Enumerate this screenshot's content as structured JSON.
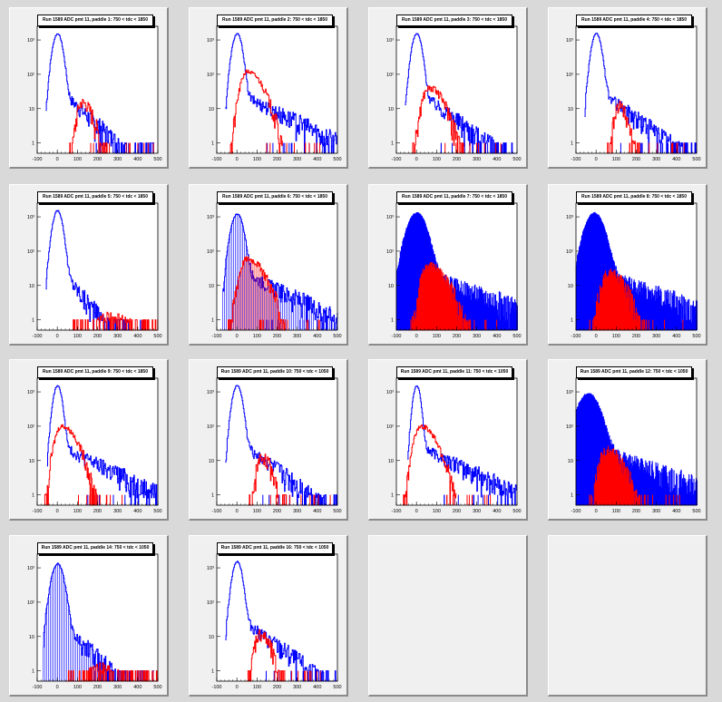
{
  "colors": {
    "blue": "#0000ff",
    "red": "#ff0000",
    "frame": "#000000",
    "pad_bg": "#f0f0f0",
    "canvas_bg": "#d9d9d9"
  },
  "chart_data": [
    {
      "type": "area",
      "title": "Run 1589 ADC pmt 11, paddle 1: 750 < tdc < 1850",
      "x_ticks": [
        "-100",
        "0",
        "100",
        "200",
        "300",
        "400",
        "500"
      ],
      "y_ticks": [
        "1",
        "10",
        "10²",
        "10³"
      ],
      "xlim": [
        -100,
        500
      ],
      "y_scale": "log",
      "series": [
        {
          "color": "blue",
          "peak_x": 0,
          "peak_y": 1500,
          "width": 18,
          "tail": [
            40,
            80
          ],
          "fill": "none"
        },
        {
          "color": "red",
          "peak_x": 120,
          "peak_y": 15,
          "width": 40,
          "fill": "none"
        }
      ]
    },
    {
      "type": "area",
      "title": "Run 1589 ADC pmt 11, paddle 2: 750 < tdc < 1850",
      "x_ticks": [
        "-100",
        "0",
        "100",
        "200",
        "300",
        "400",
        "500"
      ],
      "y_ticks": [
        "1",
        "10",
        "10²",
        "10³"
      ],
      "xlim": [
        -100,
        500
      ],
      "y_scale": "log",
      "series": [
        {
          "color": "blue",
          "peak_x": 0,
          "peak_y": 1500,
          "width": 18,
          "tail": [
            30,
            150
          ],
          "fill": "none"
        },
        {
          "color": "red",
          "peak_x": 50,
          "peak_y": 120,
          "width": 55,
          "fill": "none"
        }
      ]
    },
    {
      "type": "area",
      "title": "Run 1589 ADC pmt 11, paddle 3: 750 < tdc < 1850",
      "x_ticks": [
        "-100",
        "0",
        "100",
        "200",
        "300",
        "400",
        "500"
      ],
      "y_ticks": [
        "1",
        "10",
        "10²",
        "10³"
      ],
      "xlim": [
        -100,
        500
      ],
      "y_scale": "log",
      "series": [
        {
          "color": "blue",
          "peak_x": 0,
          "peak_y": 1500,
          "width": 18,
          "tail": [
            35,
            100
          ],
          "fill": "none"
        },
        {
          "color": "red",
          "peak_x": 60,
          "peak_y": 40,
          "width": 55,
          "fill": "none"
        }
      ]
    },
    {
      "type": "area",
      "title": "Run 1589 ADC pmt 11, paddle 4: 750 < tdc < 1850",
      "x_ticks": [
        "-100",
        "0",
        "100",
        "200",
        "300",
        "400",
        "500"
      ],
      "y_ticks": [
        "1",
        "10",
        "10²",
        "10³"
      ],
      "xlim": [
        -100,
        500
      ],
      "y_scale": "log",
      "series": [
        {
          "color": "blue",
          "peak_x": 0,
          "peak_y": 1500,
          "width": 18,
          "tail": [
            40,
            100
          ],
          "fill": "none"
        },
        {
          "color": "red",
          "peak_x": 110,
          "peak_y": 12,
          "width": 35,
          "fill": "none"
        }
      ]
    },
    {
      "type": "area",
      "title": "Run 1589 ADC pmt 11, paddle 5: 750 < tdc < 1850",
      "x_ticks": [
        "-100",
        "0",
        "100",
        "200",
        "300",
        "400",
        "500"
      ],
      "y_ticks": [
        "1",
        "10",
        "10²",
        "10³"
      ],
      "xlim": [
        -100,
        500
      ],
      "y_scale": "log",
      "series": [
        {
          "color": "blue",
          "peak_x": 0,
          "peak_y": 1500,
          "width": 18,
          "tail": [
            40,
            60
          ],
          "fill": "none"
        },
        {
          "color": "red",
          "peak_x": 250,
          "peak_y": 1,
          "width": 120,
          "fill": "none"
        }
      ]
    },
    {
      "type": "area",
      "title": "Run 1589 ADC pmt 11, paddle 6: 750 < tdc < 1850",
      "x_ticks": [
        "-100",
        "0",
        "100",
        "200",
        "300",
        "400",
        "500"
      ],
      "y_ticks": [
        "1",
        "10",
        "10²",
        "10³"
      ],
      "xlim": [
        -100,
        500
      ],
      "y_scale": "log",
      "series": [
        {
          "color": "blue",
          "peak_x": 0,
          "peak_y": 1200,
          "width": 22,
          "tail": [
            30,
            150
          ],
          "fill": "lines"
        },
        {
          "color": "red",
          "peak_x": 50,
          "peak_y": 60,
          "width": 60,
          "fill": "lines"
        }
      ]
    },
    {
      "type": "area",
      "title": "Run 1589 ADC pmt 11, paddle 7: 750 < tdc < 1850",
      "x_ticks": [
        "-100",
        "0",
        "100",
        "200",
        "300",
        "400",
        "500"
      ],
      "y_ticks": [
        "1",
        "10",
        "10²",
        "10³"
      ],
      "xlim": [
        -100,
        500
      ],
      "y_scale": "log",
      "series": [
        {
          "color": "blue",
          "peak_x": 0,
          "peak_y": 1300,
          "width": 35,
          "tail": [
            30,
            200
          ],
          "fill": "solid"
        },
        {
          "color": "red",
          "peak_x": 60,
          "peak_y": 40,
          "width": 65,
          "fill": "solid"
        }
      ]
    },
    {
      "type": "area",
      "title": "Run 1589 ADC pmt 11, paddle 8: 750 < tdc < 1850",
      "x_ticks": [
        "-100",
        "0",
        "100",
        "200",
        "300",
        "400",
        "500"
      ],
      "y_ticks": [
        "1",
        "10",
        "10²",
        "10³"
      ],
      "xlim": [
        -100,
        500
      ],
      "y_scale": "log",
      "series": [
        {
          "color": "blue",
          "peak_x": -10,
          "peak_y": 1300,
          "width": 35,
          "tail": [
            30,
            200
          ],
          "fill": "solid"
        },
        {
          "color": "red",
          "peak_x": 60,
          "peak_y": 25,
          "width": 60,
          "fill": "solid"
        }
      ]
    },
    {
      "type": "area",
      "title": "Run 1589 ADC pmt 11, paddle 9: 750 < tdc < 1850",
      "x_ticks": [
        "-100",
        "0",
        "100",
        "200",
        "300",
        "400",
        "500"
      ],
      "y_ticks": [
        "1",
        "10",
        "10²",
        "10³"
      ],
      "xlim": [
        -100,
        500
      ],
      "y_scale": "log",
      "series": [
        {
          "color": "blue",
          "peak_x": 0,
          "peak_y": 1500,
          "width": 16,
          "tail": [
            30,
            150
          ],
          "fill": "none"
        },
        {
          "color": "red",
          "peak_x": 20,
          "peak_y": 100,
          "width": 55,
          "fill": "none"
        }
      ]
    },
    {
      "type": "area",
      "title": "Run 1589 ADC pmt 11, paddle 10: 750 < tdc < 1050",
      "x_ticks": [
        "-100",
        "0",
        "100",
        "200",
        "300",
        "400",
        "500"
      ],
      "y_ticks": [
        "1",
        "10",
        "10²",
        "10³"
      ],
      "xlim": [
        -100,
        500
      ],
      "y_scale": "log",
      "series": [
        {
          "color": "blue",
          "peak_x": 0,
          "peak_y": 1500,
          "width": 18,
          "tail": [
            40,
            100
          ],
          "fill": "none"
        },
        {
          "color": "red",
          "peak_x": 120,
          "peak_y": 12,
          "width": 40,
          "fill": "none"
        }
      ]
    },
    {
      "type": "area",
      "title": "Run 1589 ADC pmt 11, paddle 11: 750 < tdc < 1050",
      "x_ticks": [
        "-100",
        "0",
        "100",
        "200",
        "300",
        "400",
        "500"
      ],
      "y_ticks": [
        "1",
        "10",
        "10²",
        "10³"
      ],
      "xlim": [
        -100,
        500
      ],
      "y_scale": "log",
      "series": [
        {
          "color": "blue",
          "peak_x": 0,
          "peak_y": 1500,
          "width": 14,
          "tail": [
            30,
            150
          ],
          "fill": "none"
        },
        {
          "color": "red",
          "peak_x": 20,
          "peak_y": 100,
          "width": 55,
          "fill": "none"
        }
      ]
    },
    {
      "type": "area",
      "title": "Run 1589 ADC pmt 11, paddle 12: 750 < tdc < 1050",
      "x_ticks": [
        "-100",
        "0",
        "100",
        "200",
        "300",
        "400",
        "500"
      ],
      "y_ticks": [
        "1",
        "10",
        "10²",
        "10³"
      ],
      "xlim": [
        -100,
        500
      ],
      "y_scale": "log",
      "series": [
        {
          "color": "blue",
          "peak_x": -40,
          "peak_y": 900,
          "width": 40,
          "tail": [
            30,
            200
          ],
          "fill": "solid"
        },
        {
          "color": "red",
          "peak_x": 50,
          "peak_y": 20,
          "width": 60,
          "fill": "solid"
        }
      ]
    },
    {
      "type": "area",
      "title": "Run 1589 ADC pmt 11, paddle 14: 750 < tdc < 1050",
      "x_ticks": [
        "-100",
        "0",
        "100",
        "200",
        "300",
        "400",
        "500"
      ],
      "y_ticks": [
        "1",
        "10",
        "10²",
        "10³"
      ],
      "xlim": [
        -100,
        500
      ],
      "y_scale": "log",
      "series": [
        {
          "color": "blue",
          "peak_x": 0,
          "peak_y": 1300,
          "width": 22,
          "tail": [
            30,
            80
          ],
          "fill": "lines"
        },
        {
          "color": "red",
          "peak_x": 200,
          "peak_y": 1,
          "width": 100,
          "fill": "none"
        }
      ]
    },
    {
      "type": "area",
      "title": "Run 1589 ADC pmt 11, paddle 16: 750 < tdc < 1050",
      "x_ticks": [
        "-100",
        "0",
        "100",
        "200",
        "300",
        "400",
        "500"
      ],
      "y_ticks": [
        "1",
        "10",
        "10²",
        "10³"
      ],
      "xlim": [
        -100,
        500
      ],
      "y_scale": "log",
      "series": [
        {
          "color": "blue",
          "peak_x": 0,
          "peak_y": 1500,
          "width": 18,
          "tail": [
            40,
            100
          ],
          "fill": "none"
        },
        {
          "color": "red",
          "peak_x": 110,
          "peak_y": 12,
          "width": 40,
          "fill": "none"
        }
      ]
    }
  ]
}
